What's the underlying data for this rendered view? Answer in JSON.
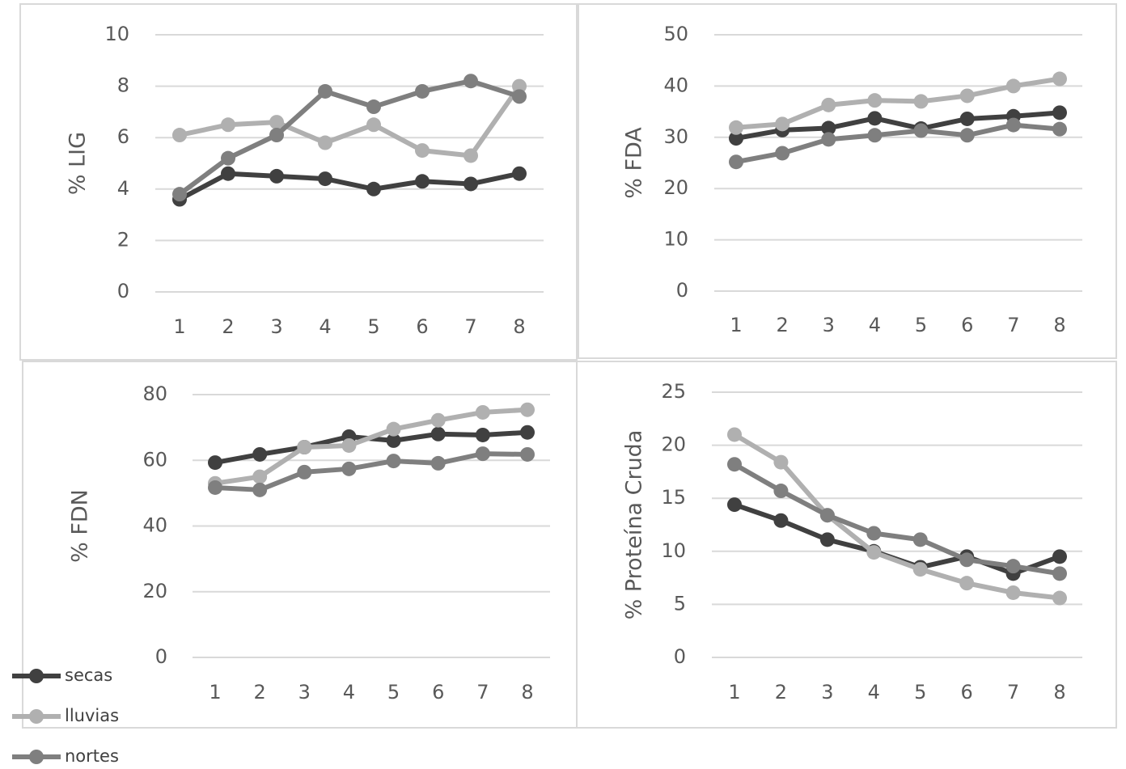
{
  "chart_data": [
    {
      "type": "line",
      "y_label": "% LIG",
      "categories": [
        "1",
        "2",
        "3",
        "4",
        "5",
        "6",
        "7",
        "8"
      ],
      "ylim": [
        0,
        10
      ],
      "yticks": [
        0,
        2,
        4,
        6,
        8,
        10
      ],
      "grid": true,
      "series": [
        {
          "name": "secas",
          "color": "#404040",
          "values": [
            3.6,
            4.6,
            4.5,
            4.4,
            4.0,
            4.3,
            4.2,
            4.6
          ]
        },
        {
          "name": "lluvias",
          "color": "#b0b0b0",
          "values": [
            6.1,
            6.5,
            6.6,
            5.8,
            6.5,
            5.5,
            5.3,
            8.0
          ]
        },
        {
          "name": "nortes",
          "color": "#7f7f7f",
          "values": [
            3.8,
            5.2,
            6.1,
            7.8,
            7.2,
            7.8,
            8.2,
            7.6
          ]
        }
      ]
    },
    {
      "type": "line",
      "y_label": "% FDA",
      "categories": [
        "1",
        "2",
        "3",
        "4",
        "5",
        "6",
        "7",
        "8"
      ],
      "ylim": [
        0,
        50
      ],
      "yticks": [
        0,
        10,
        20,
        30,
        40,
        50
      ],
      "grid": true,
      "series": [
        {
          "color": "#404040",
          "values": [
            29.8,
            31.4,
            31.8,
            33.7,
            31.7,
            33.6,
            34.1,
            34.8
          ]
        },
        {
          "color": "#b0b0b0",
          "values": [
            31.9,
            32.6,
            36.3,
            37.2,
            37.0,
            38.1,
            40.0,
            41.4
          ]
        },
        {
          "color": "#7f7f7f",
          "values": [
            25.2,
            26.9,
            29.6,
            30.4,
            31.3,
            30.4,
            32.4,
            31.6
          ]
        }
      ]
    },
    {
      "type": "line",
      "y_label": "% FDN",
      "categories": [
        "1",
        "2",
        "3",
        "4",
        "5",
        "6",
        "7",
        "8"
      ],
      "ylim": [
        0,
        80
      ],
      "yticks": [
        0,
        20,
        40,
        60,
        80
      ],
      "grid": true,
      "series": [
        {
          "color": "#404040",
          "values": [
            59.3,
            61.8,
            64.0,
            67.2,
            66.0,
            68.0,
            67.7,
            68.5
          ]
        },
        {
          "color": "#b0b0b0",
          "values": [
            53.0,
            55.0,
            64.0,
            64.5,
            69.5,
            72.2,
            74.6,
            75.4
          ]
        },
        {
          "color": "#7f7f7f",
          "values": [
            51.7,
            51.0,
            56.4,
            57.4,
            59.8,
            59.1,
            62.0,
            61.8
          ]
        }
      ]
    },
    {
      "type": "line",
      "y_label": "% Proteína Cruda",
      "categories": [
        "1",
        "2",
        "3",
        "4",
        "5",
        "6",
        "7",
        "8"
      ],
      "ylim": [
        0,
        25
      ],
      "yticks": [
        0,
        5,
        10,
        15,
        20,
        25
      ],
      "grid": true,
      "series": [
        {
          "color": "#404040",
          "values": [
            14.4,
            12.9,
            11.1,
            10.0,
            8.5,
            9.5,
            7.9,
            9.5
          ]
        },
        {
          "color": "#b0b0b0",
          "values": [
            21.0,
            18.4,
            13.4,
            9.9,
            8.3,
            7.0,
            6.1,
            5.6
          ]
        },
        {
          "color": "#7f7f7f",
          "values": [
            18.2,
            15.7,
            13.4,
            11.7,
            11.1,
            9.2,
            8.6,
            7.9
          ]
        }
      ]
    }
  ]
}
